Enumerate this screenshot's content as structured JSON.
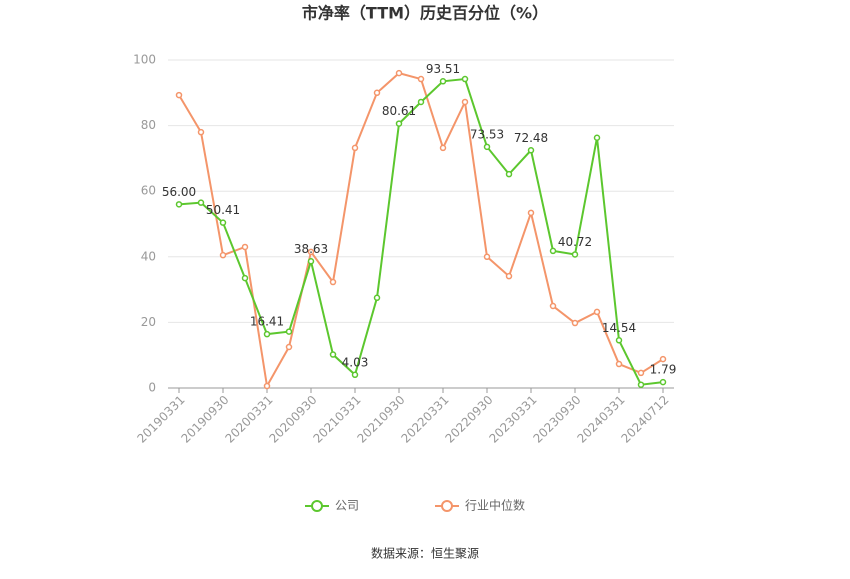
{
  "chart_data": {
    "type": "line",
    "title": "市净率（TTM）历史百分位（%）",
    "categories": [
      "20190331",
      null,
      "20190930",
      null,
      "20200331",
      null,
      "20200930",
      null,
      "20210331",
      null,
      "20210930",
      null,
      "20220331",
      null,
      "20220930",
      null,
      "20230331",
      null,
      "20230930",
      null,
      "20240331",
      null,
      "20240712"
    ],
    "series": [
      {
        "name": "公司",
        "color": "#5cc72e",
        "values": [
          56.0,
          56.5,
          50.41,
          33.5,
          16.41,
          17.2,
          38.63,
          10.2,
          4.03,
          27.5,
          80.61,
          87.2,
          93.51,
          94.2,
          73.53,
          65.2,
          72.48,
          41.8,
          40.72,
          76.3,
          14.54,
          1.0,
          1.79
        ],
        "value_labels": [
          "56.00",
          null,
          "50.41",
          null,
          "16.41",
          null,
          "38.63",
          null,
          "4.03",
          null,
          "80.61",
          null,
          "93.51",
          null,
          "73.53",
          null,
          "72.48",
          null,
          "40.72",
          null,
          "14.54",
          null,
          "1.79"
        ]
      },
      {
        "name": "行业中位数",
        "color": "#f4956a",
        "values": [
          89.3,
          78.0,
          40.5,
          43.0,
          0.6,
          12.5,
          41.5,
          32.3,
          73.2,
          90.0,
          96.0,
          94.2,
          73.2,
          87.2,
          40.0,
          34.1,
          53.4,
          25.0,
          19.8,
          23.2,
          7.3,
          4.6,
          8.8
        ]
      }
    ],
    "ylim": [
      0,
      100
    ],
    "yticks": [
      0,
      20,
      40,
      60,
      80,
      100
    ],
    "grid": true,
    "source": "数据来源：恒生聚源"
  }
}
